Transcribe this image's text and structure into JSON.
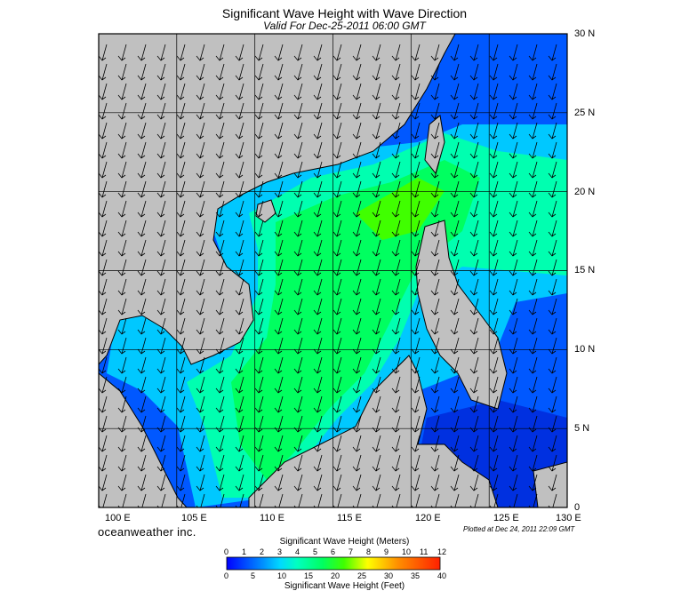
{
  "title": "Significant Wave Height with Wave Direction",
  "subtitle": "Valid For Dec-25-2011 06:00 GMT",
  "brand": "oceanweather inc.",
  "plotted": "Plotted at Dec 24, 2011 22:09 GMT",
  "map": {
    "lon_range": [
      100,
      130
    ],
    "lat_range": [
      0,
      30
    ],
    "grid_step_deg": 5,
    "lat_labels": [
      "30 N",
      "25 N",
      "20 N",
      "15 N",
      "10 N",
      "5 N",
      "0"
    ],
    "lon_labels": [
      "100 E",
      "105 E",
      "110 E",
      "115 E",
      "120 E",
      "125 E",
      "130 E"
    ],
    "land_color": "#c0c0c0",
    "arrow_direction_note_deg_from": 20
  },
  "colorbar": {
    "title_meters": "Significant Wave Height (Meters)",
    "title_feet": "Significant Wave Height (Feet)",
    "meters_ticks": [
      "0",
      "1",
      "2",
      "3",
      "4",
      "5",
      "6",
      "7",
      "8",
      "9",
      "10",
      "11",
      "12"
    ],
    "feet_ticks": [
      "0",
      "5",
      "10",
      "15",
      "20",
      "25",
      "30",
      "35",
      "40"
    ],
    "colors": [
      "#0000ff",
      "#0048ff",
      "#0090ff",
      "#00d8ff",
      "#00ffc0",
      "#00ff60",
      "#40ff00",
      "#a0ff00",
      "#ffff00",
      "#ffc000",
      "#ff8000",
      "#ff3000"
    ]
  }
}
